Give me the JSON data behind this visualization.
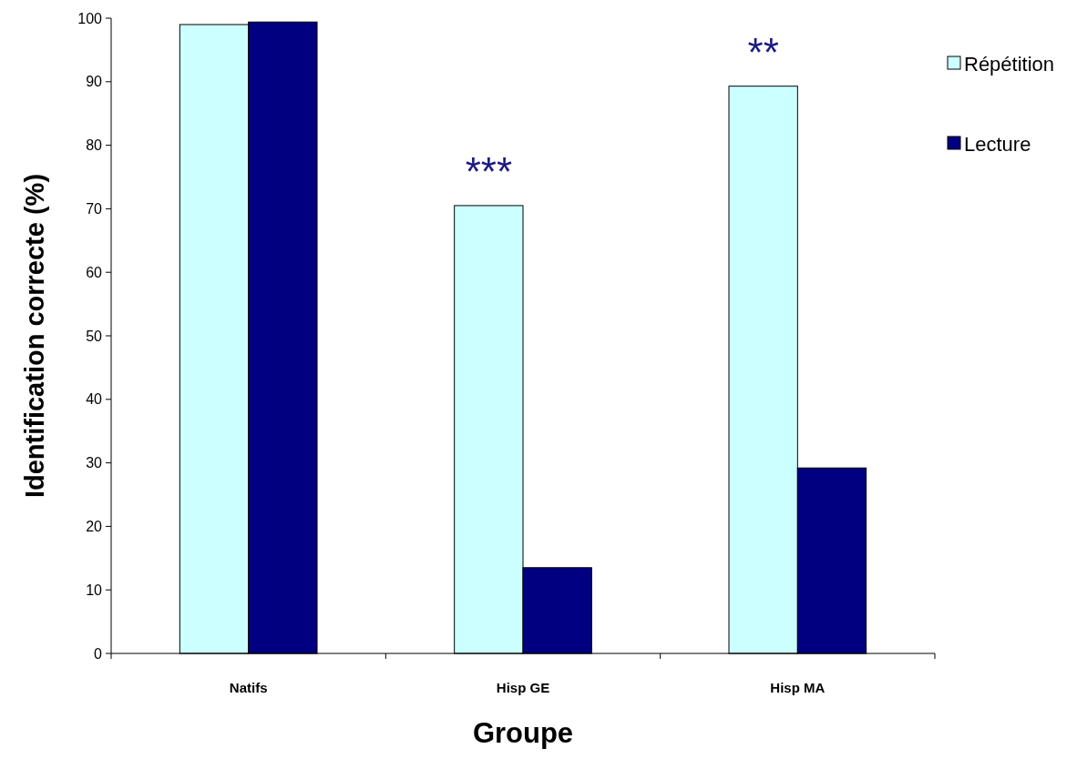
{
  "chart_data": {
    "type": "bar",
    "xlabel": "Groupe",
    "ylabel": "Identification correcte (%)",
    "categories": [
      "Natifs",
      "Hisp GE",
      "Hisp MA"
    ],
    "series": [
      {
        "name": "Répétition",
        "color": "#ccffff",
        "values": [
          99.0,
          70.5,
          89.3
        ]
      },
      {
        "name": "Lecture",
        "color": "#000080",
        "values": [
          99.4,
          13.5,
          29.2
        ]
      }
    ],
    "ylim": [
      0,
      100
    ],
    "yticks": [
      0,
      10,
      20,
      30,
      40,
      50,
      60,
      70,
      80,
      90,
      100
    ],
    "grid": false,
    "legend": "right",
    "annotations": [
      {
        "text": "***",
        "x": "Hisp GE",
        "y": 70.5
      },
      {
        "text": "**",
        "x": "Hisp MA",
        "y": 89.3
      }
    ]
  }
}
